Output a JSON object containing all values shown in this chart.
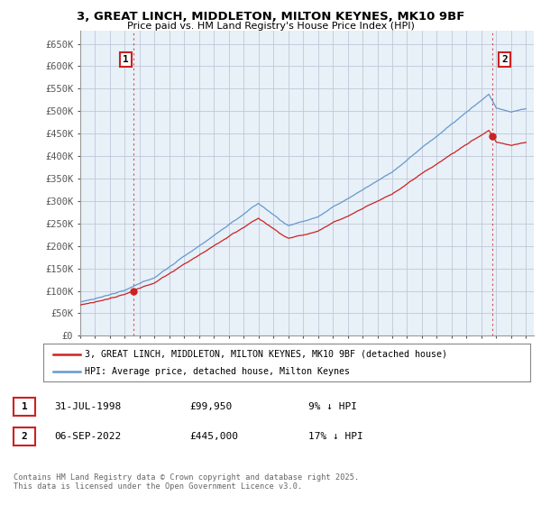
{
  "title": "3, GREAT LINCH, MIDDLETON, MILTON KEYNES, MK10 9BF",
  "subtitle": "Price paid vs. HM Land Registry's House Price Index (HPI)",
  "ylim": [
    0,
    680000
  ],
  "yticks": [
    0,
    50000,
    100000,
    150000,
    200000,
    250000,
    300000,
    350000,
    400000,
    450000,
    500000,
    550000,
    600000,
    650000
  ],
  "ytick_labels": [
    "£0",
    "£50K",
    "£100K",
    "£150K",
    "£200K",
    "£250K",
    "£300K",
    "£350K",
    "£400K",
    "£450K",
    "£500K",
    "£550K",
    "£600K",
    "£650K"
  ],
  "background_color": "#ffffff",
  "plot_bg_color": "#e8f0f8",
  "grid_color": "#c0c8d8",
  "hpi_color": "#6699cc",
  "price_color": "#cc2222",
  "legend_line1": "3, GREAT LINCH, MIDDLETON, MILTON KEYNES, MK10 9BF (detached house)",
  "legend_line2": "HPI: Average price, detached house, Milton Keynes",
  "note1_num": "1",
  "note1_date": "31-JUL-1998",
  "note1_price": "£99,950",
  "note1_pct": "9% ↓ HPI",
  "note2_num": "2",
  "note2_date": "06-SEP-2022",
  "note2_price": "£445,000",
  "note2_pct": "17% ↓ HPI",
  "copyright": "Contains HM Land Registry data © Crown copyright and database right 2025.\nThis data is licensed under the Open Government Licence v3.0.",
  "sale1_year": 1998.58,
  "sale1_value": 99950,
  "sale2_year": 2022.68,
  "sale2_value": 445000
}
